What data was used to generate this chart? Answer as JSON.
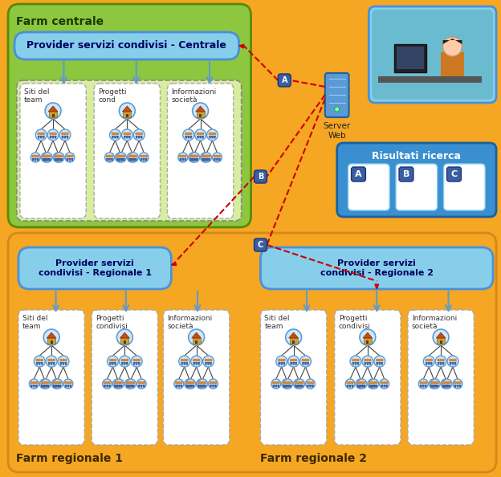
{
  "bg_color": "#F5A623",
  "farm_centrale_bg": "#8DC63F",
  "farm_centrale_border": "#5A8A00",
  "provider_box_color": "#87CEEB",
  "provider_box_border": "#4A90D9",
  "label_box_color": "#3A5FA0",
  "arrow_color": "#CC0000",
  "tree_line_color": "#5B9BD5",
  "title_farm_centrale": "Farm centrale",
  "title_farm_reg1": "Farm regionale 1",
  "title_farm_reg2": "Farm regionale 2",
  "provider_centrale": "Provider servizi condivisi - Centrale",
  "provider_reg1": "Provider servizi\ncondivisi - Regionale 1",
  "provider_reg2": "Provider servizi\ncondivisi - Regionale 2",
  "risultati_title": "Risultati ricerca",
  "server_label": "Server\nWeb",
  "tree_labels_top": [
    "Siti del\nteam",
    "Progetti\ncond",
    "Informazioni\nsocietà"
  ],
  "tree_labels_r1": [
    "Siti del\nteam",
    "Progetti\ncondivisi",
    "Informazioni\nsocietà"
  ],
  "tree_labels_r2": [
    "Siti del\nteam",
    "Progetti\ncondivisi",
    "Informazioni\nsocietà"
  ],
  "abc_labels": [
    "A",
    "B",
    "C"
  ]
}
